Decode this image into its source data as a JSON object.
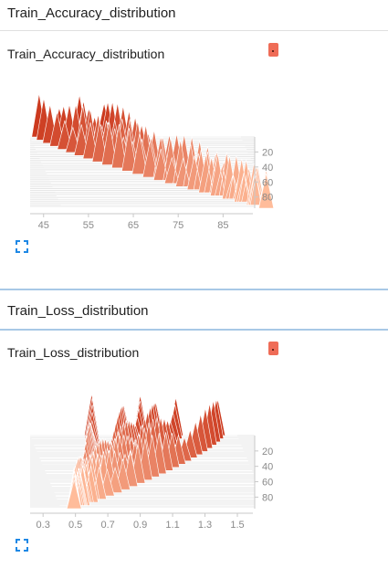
{
  "panels": [
    {
      "section_title": "Train_Accuracy_distribution",
      "card_title": "Train_Accuracy_distribution",
      "icons": {
        "menu": "dropdown-menu-icon",
        "expand": "fullscreen-expand-icon"
      },
      "chart_data": {
        "type": "area",
        "mode": "offset-histogram",
        "title": "Train_Accuracy_distribution",
        "x_ticks": [
          "45",
          "55",
          "65",
          "75",
          "85"
        ],
        "x_tick_values": [
          45,
          55,
          65,
          75,
          85
        ],
        "xlim": [
          42,
          89
        ],
        "step_ticks": [
          "20",
          "40",
          "60",
          "80"
        ],
        "step_tick_values": [
          20,
          40,
          60,
          80
        ],
        "steps_range": [
          0,
          95
        ],
        "peaks_first_step": [
          44,
          48.5,
          53,
          58.5
        ],
        "peaks_last_step": [
          87.5
        ],
        "colors": {
          "oldest": "#cc3a1f",
          "newest": "#ffbc9a"
        }
      }
    },
    {
      "section_title": "Train_Loss_distribution",
      "card_title": "Train_Loss_distribution",
      "icons": {
        "menu": "dropdown-menu-icon",
        "expand": "fullscreen-expand-icon"
      },
      "chart_data": {
        "type": "area",
        "mode": "offset-histogram",
        "title": "Train_Loss_distribution",
        "x_ticks": [
          "0.3",
          "0.5",
          "0.7",
          "0.9",
          "1.1",
          "1.3",
          "1.5"
        ],
        "x_tick_values": [
          0.3,
          0.5,
          0.7,
          0.9,
          1.1,
          1.3,
          1.5
        ],
        "xlim": [
          0.22,
          1.5
        ],
        "step_ticks": [
          "20",
          "40",
          "60",
          "80"
        ],
        "step_tick_values": [
          20,
          40,
          60,
          80
        ],
        "steps_range": [
          0,
          95
        ],
        "peaks_first_step": [
          0.6,
          0.8,
          0.9,
          1.0,
          1.12,
          1.38
        ],
        "peaks_last_step": [
          0.3
        ],
        "colors": {
          "oldest": "#cc3a1f",
          "newest": "#ffbc9a"
        }
      }
    }
  ]
}
